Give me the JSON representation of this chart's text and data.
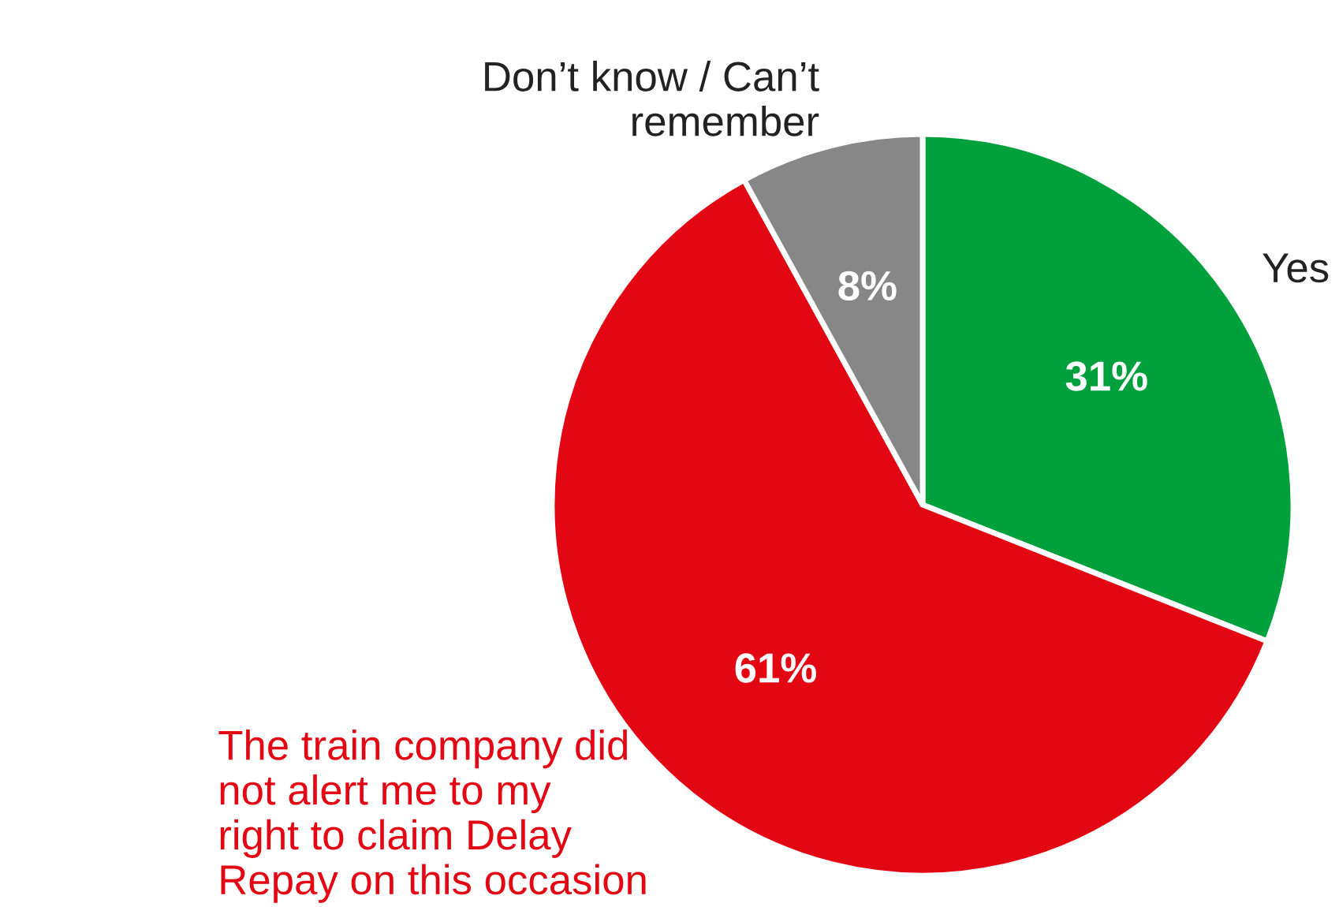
{
  "chart_data": {
    "type": "pie",
    "categories": [
      "Yes",
      "The train company did not alert me to my right to claim Delay Repay on this occasion",
      "Don’t know / Can’t remember"
    ],
    "values": [
      31,
      61,
      8
    ],
    "colors": [
      "#00a03c",
      "#e30613",
      "#878787"
    ],
    "value_labels": [
      "31%",
      "61%",
      "8%"
    ],
    "legend": false
  }
}
